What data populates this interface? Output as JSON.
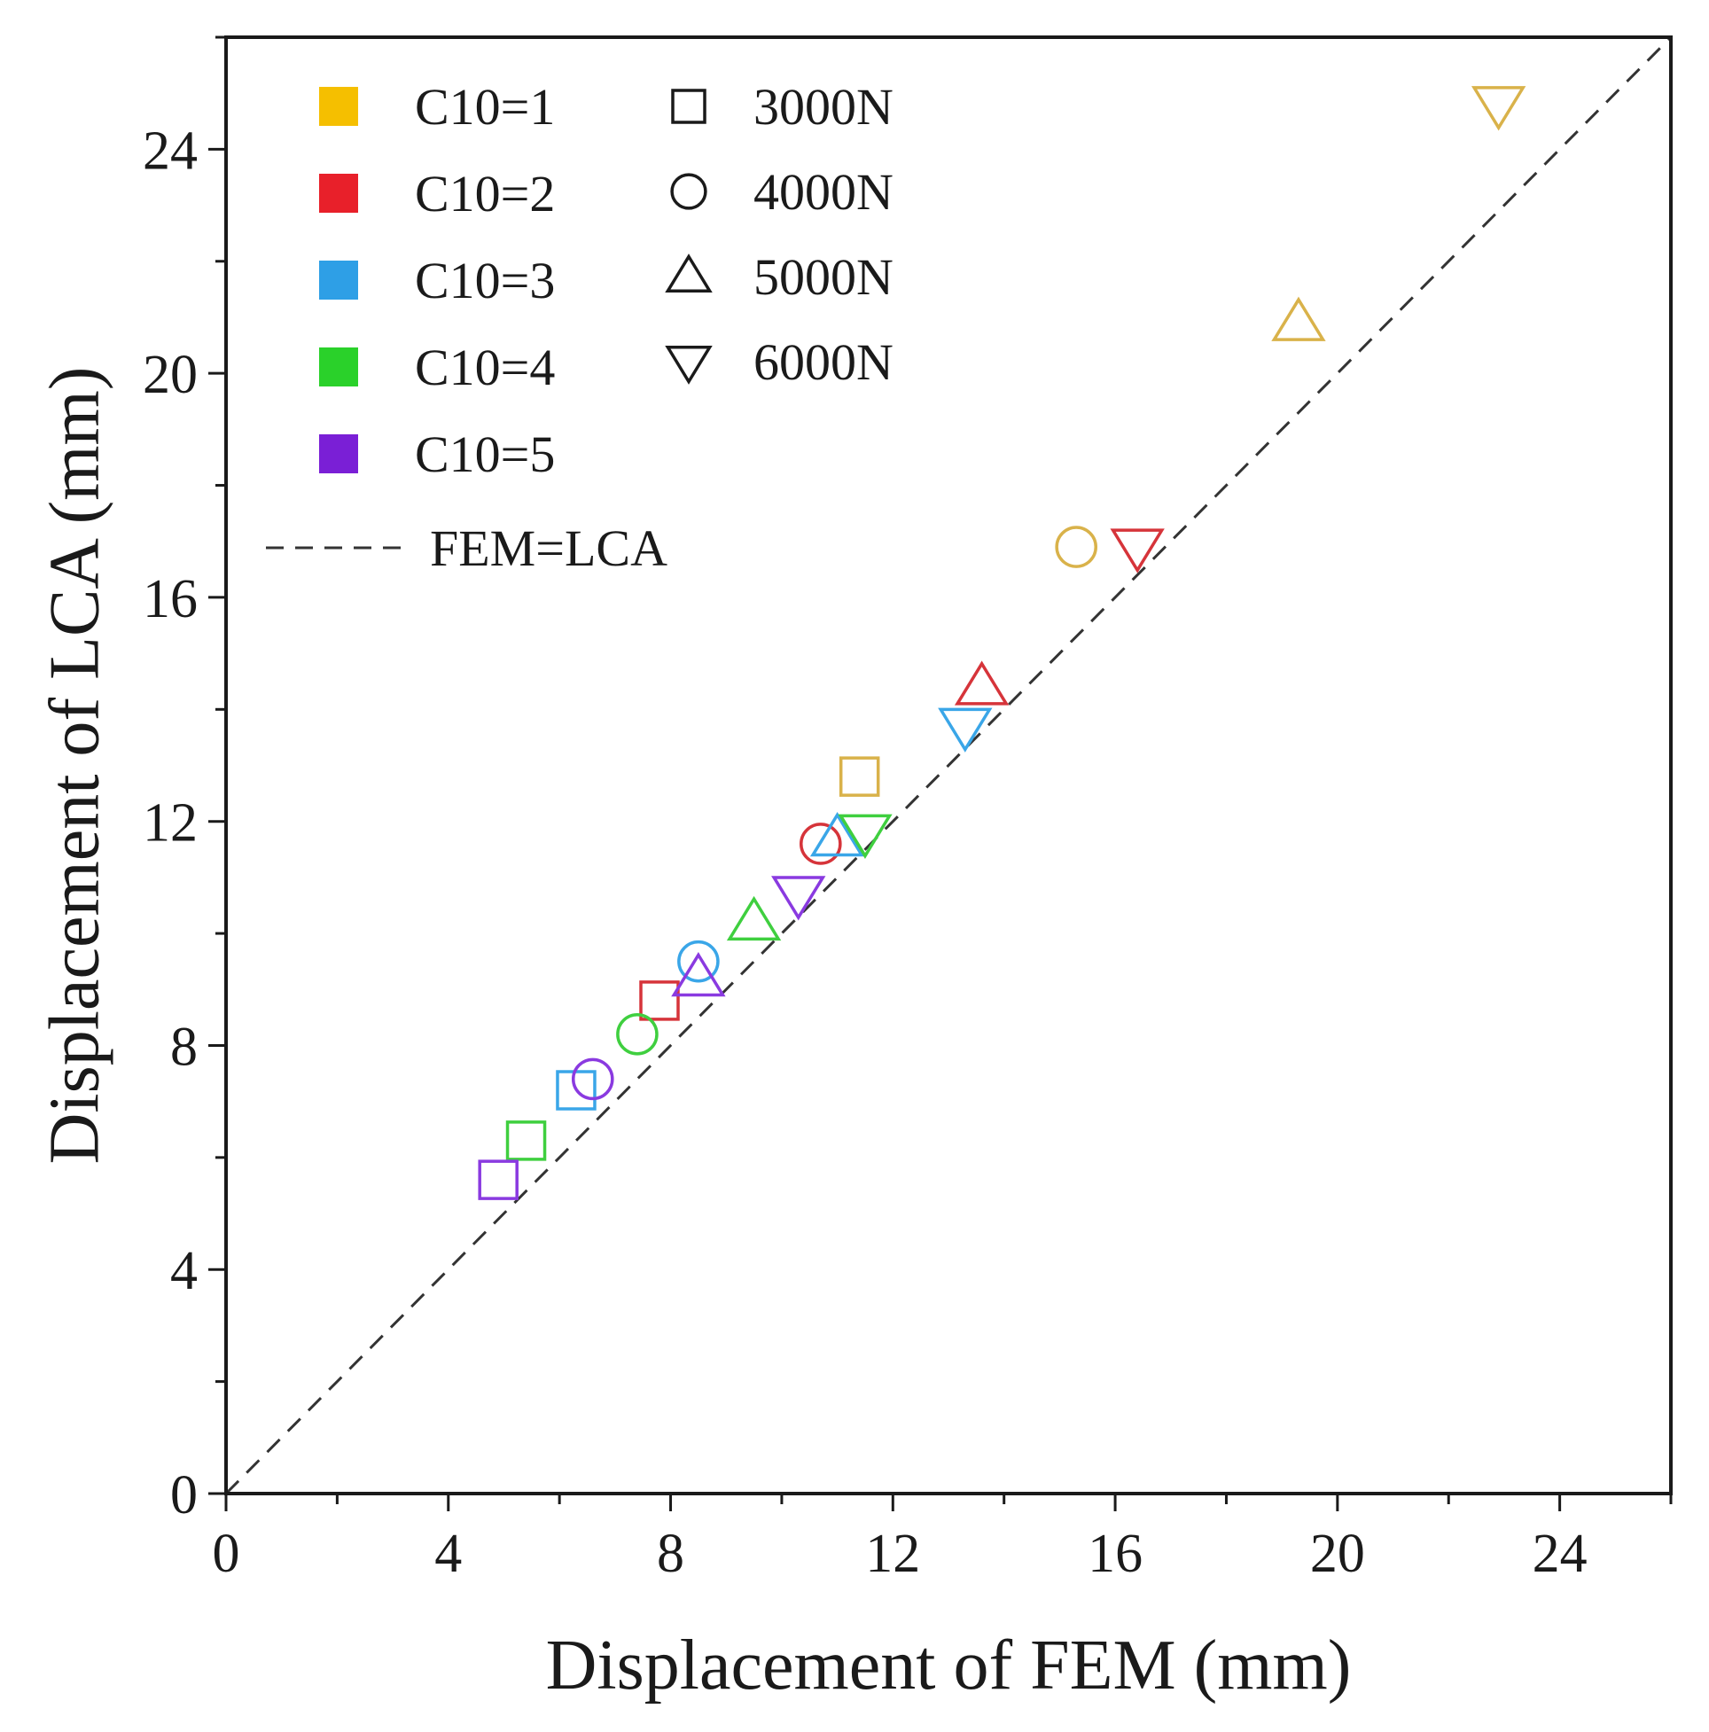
{
  "chart_data": {
    "type": "scatter",
    "xlabel": "Displacement of FEM (mm)",
    "ylabel": "Displacement of LCA (mm)",
    "xlim": [
      0,
      26
    ],
    "ylim": [
      0,
      26
    ],
    "xticks": [
      0,
      4,
      8,
      12,
      16,
      20,
      24
    ],
    "yticks": [
      0,
      4,
      8,
      12,
      16,
      20,
      24
    ],
    "minor_tick_step": 2,
    "grid": false,
    "legend_position": "top-left",
    "reference_line": {
      "label": "FEM=LCA",
      "x": [
        0,
        26
      ],
      "y": [
        0,
        26
      ],
      "style": "dashed",
      "color": "#333333"
    },
    "materials": [
      {
        "label": "C10=1",
        "color": "#f5bf00",
        "marker_color": "#d9b24a"
      },
      {
        "label": "C10=2",
        "color": "#e8202a",
        "marker_color": "#d6343a"
      },
      {
        "label": "C10=3",
        "color": "#2e9fe6",
        "marker_color": "#3aa6e8"
      },
      {
        "label": "C10=4",
        "color": "#2ad12a",
        "marker_color": "#3fcf3f"
      },
      {
        "label": "C10=5",
        "color": "#7a1fd6",
        "marker_color": "#8a3ae0"
      }
    ],
    "loads": [
      {
        "label": "3000N",
        "marker": "square"
      },
      {
        "label": "4000N",
        "marker": "circle"
      },
      {
        "label": "5000N",
        "marker": "triangle-up"
      },
      {
        "label": "6000N",
        "marker": "triangle-down"
      }
    ],
    "series": [
      {
        "name": "C10=1",
        "points": [
          {
            "load": "3000N",
            "x": 11.4,
            "y": 12.8
          },
          {
            "load": "4000N",
            "x": 15.3,
            "y": 16.9
          },
          {
            "load": "5000N",
            "x": 19.3,
            "y": 20.9
          },
          {
            "load": "6000N",
            "x": 22.9,
            "y": 24.8
          }
        ]
      },
      {
        "name": "C10=2",
        "points": [
          {
            "load": "3000N",
            "x": 7.8,
            "y": 8.8
          },
          {
            "load": "4000N",
            "x": 10.7,
            "y": 11.6
          },
          {
            "load": "5000N",
            "x": 13.6,
            "y": 14.4
          },
          {
            "load": "6000N",
            "x": 16.4,
            "y": 16.9
          }
        ]
      },
      {
        "name": "C10=3",
        "points": [
          {
            "load": "3000N",
            "x": 6.3,
            "y": 7.2
          },
          {
            "load": "4000N",
            "x": 8.5,
            "y": 9.5
          },
          {
            "load": "5000N",
            "x": 11.0,
            "y": 11.7
          },
          {
            "load": "6000N",
            "x": 13.3,
            "y": 13.7
          }
        ]
      },
      {
        "name": "C10=4",
        "points": [
          {
            "load": "3000N",
            "x": 5.4,
            "y": 6.3
          },
          {
            "load": "4000N",
            "x": 7.4,
            "y": 8.2
          },
          {
            "load": "5000N",
            "x": 9.5,
            "y": 10.2
          },
          {
            "load": "6000N",
            "x": 11.5,
            "y": 11.8
          }
        ]
      },
      {
        "name": "C10=5",
        "points": [
          {
            "load": "3000N",
            "x": 4.9,
            "y": 5.6
          },
          {
            "load": "4000N",
            "x": 6.6,
            "y": 7.4
          },
          {
            "load": "5000N",
            "x": 8.5,
            "y": 9.2
          },
          {
            "load": "6000N",
            "x": 10.3,
            "y": 10.7
          }
        ]
      }
    ]
  }
}
